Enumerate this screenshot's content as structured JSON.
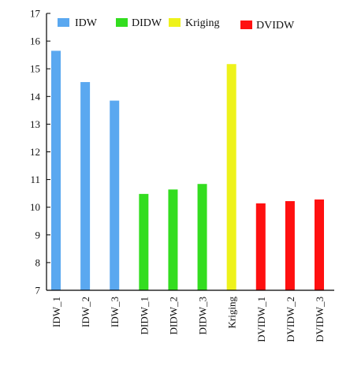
{
  "chart_data": {
    "type": "bar",
    "categories": [
      "IDW_1",
      "IDW_2",
      "IDW_3",
      "DIDW_1",
      "DIDW_2",
      "DIDW_3",
      "Kriging",
      "DVIDW_1",
      "DVIDW_2",
      "DVIDW_3"
    ],
    "groups": [
      "IDW",
      "IDW",
      "IDW",
      "DIDW",
      "DIDW",
      "DIDW",
      "Kriging",
      "DVIDW",
      "DVIDW",
      "DVIDW"
    ],
    "values": [
      15.65,
      14.52,
      13.85,
      10.48,
      10.64,
      10.84,
      15.17,
      10.14,
      10.22,
      10.28
    ],
    "ylim": [
      7,
      17
    ],
    "yticks": [
      7,
      8,
      9,
      10,
      11,
      12,
      13,
      14,
      15,
      16,
      17
    ],
    "title": "",
    "xlabel": "",
    "ylabel": "",
    "grid": false,
    "legend_position": "top",
    "legend": [
      {
        "name": "IDW",
        "color": "#5aa8f0"
      },
      {
        "name": "DIDW",
        "color": "#33dd1f"
      },
      {
        "name": "Kriging",
        "color": "#eef21a"
      },
      {
        "name": "DVIDW",
        "color": "#ff1010"
      }
    ]
  }
}
